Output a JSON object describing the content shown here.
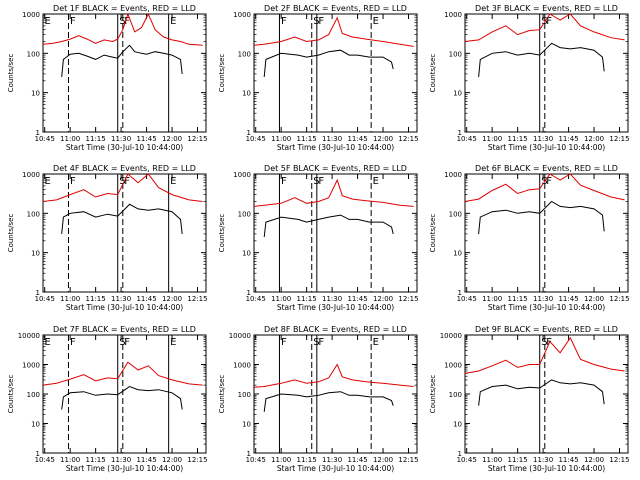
{
  "figure": {
    "xlabel": "Start Time (30-Jul-10 10:44:00)",
    "ylabel": "Counts/sec",
    "x_ticks": [
      "10:45",
      "11:00",
      "11:15",
      "11:30",
      "11:45",
      "12:00",
      "12:15"
    ],
    "series_colors": {
      "events": "#000000",
      "lld": "#e00000"
    }
  },
  "chart_data": [
    {
      "type": "line",
      "title": "Det 1F BLACK = Events, RED = LLD",
      "yscale": "log",
      "ylim": [
        1,
        1000
      ],
      "xlim": [
        "10:44",
        "12:20"
      ],
      "flags": [
        {
          "t": "10:44",
          "label": "E"
        },
        {
          "t": "10:59",
          "label": "F"
        },
        {
          "t": "11:28",
          "label": "S"
        },
        {
          "t": "11:31",
          "label": "F"
        },
        {
          "t": "11:58",
          "label": "E"
        }
      ],
      "events": [
        [
          "10:55",
          25
        ],
        [
          "10:56",
          70
        ],
        [
          "11:00",
          95
        ],
        [
          "11:05",
          100
        ],
        [
          "11:10",
          85
        ],
        [
          "11:15",
          70
        ],
        [
          "11:20",
          90
        ],
        [
          "11:25",
          80
        ],
        [
          "11:28",
          75
        ],
        [
          "11:31",
          110
        ],
        [
          "11:35",
          160
        ],
        [
          "11:38",
          110
        ],
        [
          "11:42",
          100
        ],
        [
          "11:45",
          95
        ],
        [
          "11:50",
          110
        ],
        [
          "11:55",
          100
        ],
        [
          "12:00",
          90
        ],
        [
          "12:05",
          70
        ],
        [
          "12:06",
          30
        ]
      ],
      "lld": [
        [
          "10:44",
          170
        ],
        [
          "10:50",
          180
        ],
        [
          "10:55",
          200
        ],
        [
          "11:00",
          230
        ],
        [
          "11:05",
          280
        ],
        [
          "11:10",
          230
        ],
        [
          "11:15",
          180
        ],
        [
          "11:20",
          220
        ],
        [
          "11:25",
          200
        ],
        [
          "11:28",
          230
        ],
        [
          "11:31",
          400
        ],
        [
          "11:34",
          1000
        ],
        [
          "11:38",
          350
        ],
        [
          "11:42",
          450
        ],
        [
          "11:46",
          1000
        ],
        [
          "11:50",
          400
        ],
        [
          "11:55",
          260
        ],
        [
          "12:00",
          220
        ],
        [
          "12:05",
          200
        ],
        [
          "12:10",
          170
        ],
        [
          "12:18",
          160
        ]
      ]
    },
    {
      "type": "line",
      "title": "Det 2F BLACK = Events, RED = LLD",
      "yscale": "log",
      "ylim": [
        1,
        1000
      ],
      "xlim": [
        "10:44",
        "12:20"
      ],
      "flags": [
        {
          "t": "10:59",
          "label": "F"
        },
        {
          "t": "11:18",
          "label": "S"
        },
        {
          "t": "11:21",
          "label": "F"
        },
        {
          "t": "11:53",
          "label": "E"
        }
      ],
      "events": [
        [
          "10:50",
          25
        ],
        [
          "10:51",
          70
        ],
        [
          "11:00",
          100
        ],
        [
          "11:10",
          90
        ],
        [
          "11:15",
          80
        ],
        [
          "11:22",
          90
        ],
        [
          "11:28",
          110
        ],
        [
          "11:35",
          120
        ],
        [
          "11:40",
          90
        ],
        [
          "11:45",
          90
        ],
        [
          "11:52",
          80
        ],
        [
          "12:00",
          80
        ],
        [
          "12:05",
          60
        ],
        [
          "12:06",
          40
        ]
      ],
      "lld": [
        [
          "10:44",
          160
        ],
        [
          "10:50",
          170
        ],
        [
          "11:00",
          200
        ],
        [
          "11:08",
          260
        ],
        [
          "11:15",
          200
        ],
        [
          "11:22",
          220
        ],
        [
          "11:28",
          300
        ],
        [
          "11:33",
          800
        ],
        [
          "11:36",
          320
        ],
        [
          "11:42",
          260
        ],
        [
          "11:50",
          230
        ],
        [
          "12:00",
          200
        ],
        [
          "12:10",
          170
        ],
        [
          "12:18",
          150
        ]
      ]
    },
    {
      "type": "line",
      "title": "Det 3F BLACK = Events, RED = LLD",
      "yscale": "log",
      "ylim": [
        1,
        1000
      ],
      "xlim": [
        "10:44",
        "12:20"
      ],
      "flags": [
        {
          "t": "11:28",
          "label": "S"
        },
        {
          "t": "11:31",
          "label": "F"
        }
      ],
      "events": [
        [
          "10:52",
          25
        ],
        [
          "10:53",
          70
        ],
        [
          "11:00",
          100
        ],
        [
          "11:08",
          110
        ],
        [
          "11:15",
          90
        ],
        [
          "11:22",
          100
        ],
        [
          "11:28",
          90
        ],
        [
          "11:35",
          180
        ],
        [
          "11:40",
          140
        ],
        [
          "11:46",
          130
        ],
        [
          "11:52",
          140
        ],
        [
          "12:00",
          120
        ],
        [
          "12:05",
          80
        ],
        [
          "12:06",
          35
        ]
      ],
      "lld": [
        [
          "10:44",
          200
        ],
        [
          "10:52",
          220
        ],
        [
          "11:00",
          350
        ],
        [
          "11:08",
          500
        ],
        [
          "11:15",
          300
        ],
        [
          "11:22",
          380
        ],
        [
          "11:28",
          400
        ],
        [
          "11:34",
          1000
        ],
        [
          "11:40",
          700
        ],
        [
          "11:46",
          1000
        ],
        [
          "11:52",
          500
        ],
        [
          "12:00",
          350
        ],
        [
          "12:10",
          250
        ],
        [
          "12:18",
          220
        ]
      ]
    },
    {
      "type": "line",
      "title": "Det 4F BLACK = Events, RED = LLD",
      "yscale": "log",
      "ylim": [
        1,
        1000
      ],
      "xlim": [
        "10:44",
        "12:20"
      ],
      "flags": [
        {
          "t": "10:44",
          "label": "E"
        },
        {
          "t": "10:59",
          "label": "F"
        },
        {
          "t": "11:28",
          "label": "S"
        },
        {
          "t": "11:31",
          "label": "F"
        },
        {
          "t": "11:58",
          "label": "E"
        }
      ],
      "events": [
        [
          "10:55",
          30
        ],
        [
          "10:56",
          80
        ],
        [
          "11:00",
          100
        ],
        [
          "11:08",
          110
        ],
        [
          "11:15",
          80
        ],
        [
          "11:22",
          95
        ],
        [
          "11:28",
          85
        ],
        [
          "11:35",
          170
        ],
        [
          "11:40",
          130
        ],
        [
          "11:46",
          120
        ],
        [
          "11:52",
          130
        ],
        [
          "12:00",
          110
        ],
        [
          "12:05",
          70
        ],
        [
          "12:06",
          30
        ]
      ],
      "lld": [
        [
          "10:44",
          200
        ],
        [
          "10:52",
          220
        ],
        [
          "11:00",
          300
        ],
        [
          "11:08",
          400
        ],
        [
          "11:15",
          260
        ],
        [
          "11:22",
          320
        ],
        [
          "11:28",
          300
        ],
        [
          "11:34",
          1000
        ],
        [
          "11:40",
          600
        ],
        [
          "11:46",
          1000
        ],
        [
          "11:52",
          450
        ],
        [
          "12:00",
          300
        ],
        [
          "12:10",
          220
        ],
        [
          "12:18",
          200
        ]
      ]
    },
    {
      "type": "line",
      "title": "Det 5F BLACK = Events, RED = LLD",
      "yscale": "log",
      "ylim": [
        1,
        1000
      ],
      "xlim": [
        "10:44",
        "12:20"
      ],
      "flags": [
        {
          "t": "10:59",
          "label": "F"
        },
        {
          "t": "11:18",
          "label": "S"
        },
        {
          "t": "11:21",
          "label": "F"
        },
        {
          "t": "11:53",
          "label": "E"
        }
      ],
      "events": [
        [
          "10:50",
          25
        ],
        [
          "10:51",
          60
        ],
        [
          "11:00",
          80
        ],
        [
          "11:10",
          70
        ],
        [
          "11:15",
          60
        ],
        [
          "11:22",
          70
        ],
        [
          "11:28",
          80
        ],
        [
          "11:35",
          90
        ],
        [
          "11:40",
          70
        ],
        [
          "11:45",
          70
        ],
        [
          "11:52",
          60
        ],
        [
          "12:00",
          60
        ],
        [
          "12:05",
          45
        ],
        [
          "12:06",
          30
        ]
      ],
      "lld": [
        [
          "10:44",
          150
        ],
        [
          "10:50",
          160
        ],
        [
          "11:00",
          180
        ],
        [
          "11:08",
          250
        ],
        [
          "11:15",
          180
        ],
        [
          "11:22",
          200
        ],
        [
          "11:28",
          250
        ],
        [
          "11:33",
          700
        ],
        [
          "11:36",
          280
        ],
        [
          "11:42",
          230
        ],
        [
          "11:50",
          210
        ],
        [
          "12:00",
          190
        ],
        [
          "12:10",
          160
        ],
        [
          "12:18",
          150
        ]
      ]
    },
    {
      "type": "line",
      "title": "Det 6F BLACK = Events, RED = LLD",
      "yscale": "log",
      "ylim": [
        1,
        1000
      ],
      "xlim": [
        "10:44",
        "12:20"
      ],
      "flags": [
        {
          "t": "11:28",
          "label": "S"
        },
        {
          "t": "11:31",
          "label": "F"
        }
      ],
      "events": [
        [
          "10:52",
          30
        ],
        [
          "10:53",
          80
        ],
        [
          "11:00",
          110
        ],
        [
          "11:08",
          120
        ],
        [
          "11:15",
          100
        ],
        [
          "11:22",
          110
        ],
        [
          "11:28",
          100
        ],
        [
          "11:35",
          200
        ],
        [
          "11:40",
          150
        ],
        [
          "11:46",
          140
        ],
        [
          "11:52",
          150
        ],
        [
          "12:00",
          130
        ],
        [
          "12:05",
          90
        ],
        [
          "12:06",
          35
        ]
      ],
      "lld": [
        [
          "10:44",
          200
        ],
        [
          "10:52",
          230
        ],
        [
          "11:00",
          380
        ],
        [
          "11:08",
          550
        ],
        [
          "11:15",
          320
        ],
        [
          "11:22",
          400
        ],
        [
          "11:28",
          420
        ],
        [
          "11:34",
          1000
        ],
        [
          "11:40",
          700
        ],
        [
          "11:46",
          1000
        ],
        [
          "11:52",
          520
        ],
        [
          "12:00",
          380
        ],
        [
          "12:10",
          260
        ],
        [
          "12:18",
          220
        ]
      ]
    },
    {
      "type": "line",
      "title": "Det 7F BLACK = Events, RED = LLD",
      "yscale": "log",
      "ylim": [
        1,
        10000
      ],
      "xlim": [
        "10:44",
        "12:20"
      ],
      "flags": [
        {
          "t": "10:44",
          "label": "E"
        },
        {
          "t": "10:59",
          "label": "F"
        },
        {
          "t": "11:28",
          "label": "S"
        },
        {
          "t": "11:31",
          "label": "F"
        },
        {
          "t": "11:58",
          "label": "E"
        }
      ],
      "events": [
        [
          "10:55",
          30
        ],
        [
          "10:56",
          80
        ],
        [
          "11:00",
          110
        ],
        [
          "11:08",
          120
        ],
        [
          "11:15",
          90
        ],
        [
          "11:22",
          100
        ],
        [
          "11:28",
          95
        ],
        [
          "11:35",
          180
        ],
        [
          "11:40",
          140
        ],
        [
          "11:46",
          130
        ],
        [
          "11:52",
          140
        ],
        [
          "12:00",
          110
        ],
        [
          "12:05",
          70
        ],
        [
          "12:06",
          30
        ]
      ],
      "lld": [
        [
          "10:44",
          200
        ],
        [
          "10:52",
          230
        ],
        [
          "11:00",
          320
        ],
        [
          "11:08",
          450
        ],
        [
          "11:15",
          280
        ],
        [
          "11:22",
          350
        ],
        [
          "11:28",
          330
        ],
        [
          "11:34",
          1200
        ],
        [
          "11:40",
          650
        ],
        [
          "11:46",
          900
        ],
        [
          "11:52",
          420
        ],
        [
          "12:00",
          300
        ],
        [
          "12:10",
          220
        ],
        [
          "12:18",
          200
        ]
      ]
    },
    {
      "type": "line",
      "title": "Det 8F BLACK = Events, RED = LLD",
      "yscale": "log",
      "ylim": [
        1,
        10000
      ],
      "xlim": [
        "10:44",
        "12:20"
      ],
      "flags": [
        {
          "t": "10:59",
          "label": "F"
        },
        {
          "t": "11:18",
          "label": "S"
        },
        {
          "t": "11:21",
          "label": "F"
        },
        {
          "t": "11:53",
          "label": "E"
        }
      ],
      "events": [
        [
          "10:50",
          25
        ],
        [
          "10:51",
          70
        ],
        [
          "11:00",
          100
        ],
        [
          "11:10",
          90
        ],
        [
          "11:15",
          80
        ],
        [
          "11:22",
          90
        ],
        [
          "11:28",
          110
        ],
        [
          "11:35",
          120
        ],
        [
          "11:40",
          90
        ],
        [
          "11:45",
          90
        ],
        [
          "11:52",
          80
        ],
        [
          "12:00",
          80
        ],
        [
          "12:05",
          60
        ],
        [
          "12:06",
          40
        ]
      ],
      "lld": [
        [
          "10:44",
          170
        ],
        [
          "10:50",
          180
        ],
        [
          "11:00",
          230
        ],
        [
          "11:08",
          300
        ],
        [
          "11:15",
          230
        ],
        [
          "11:22",
          260
        ],
        [
          "11:28",
          350
        ],
        [
          "11:33",
          1000
        ],
        [
          "11:36",
          380
        ],
        [
          "11:42",
          300
        ],
        [
          "11:50",
          260
        ],
        [
          "12:00",
          230
        ],
        [
          "12:10",
          200
        ],
        [
          "12:18",
          180
        ]
      ]
    },
    {
      "type": "line",
      "title": "Det 9F BLACK = Events, RED = LLD",
      "yscale": "log",
      "ylim": [
        1,
        10000
      ],
      "xlim": [
        "10:44",
        "12:20"
      ],
      "flags": [
        {
          "t": "11:28",
          "label": "S"
        },
        {
          "t": "11:31",
          "label": "F"
        }
      ],
      "events": [
        [
          "10:52",
          40
        ],
        [
          "10:53",
          120
        ],
        [
          "11:00",
          180
        ],
        [
          "11:08",
          200
        ],
        [
          "11:15",
          150
        ],
        [
          "11:22",
          170
        ],
        [
          "11:28",
          160
        ],
        [
          "11:35",
          300
        ],
        [
          "11:40",
          240
        ],
        [
          "11:46",
          220
        ],
        [
          "11:52",
          240
        ],
        [
          "12:00",
          200
        ],
        [
          "12:05",
          120
        ],
        [
          "12:06",
          45
        ]
      ],
      "lld": [
        [
          "10:44",
          500
        ],
        [
          "10:52",
          600
        ],
        [
          "11:00",
          900
        ],
        [
          "11:08",
          1400
        ],
        [
          "11:15",
          800
        ],
        [
          "11:22",
          1000
        ],
        [
          "11:28",
          1000
        ],
        [
          "11:34",
          6000
        ],
        [
          "11:40",
          2500
        ],
        [
          "11:46",
          8000
        ],
        [
          "11:52",
          1500
        ],
        [
          "12:00",
          1000
        ],
        [
          "12:10",
          700
        ],
        [
          "12:18",
          600
        ]
      ]
    }
  ]
}
